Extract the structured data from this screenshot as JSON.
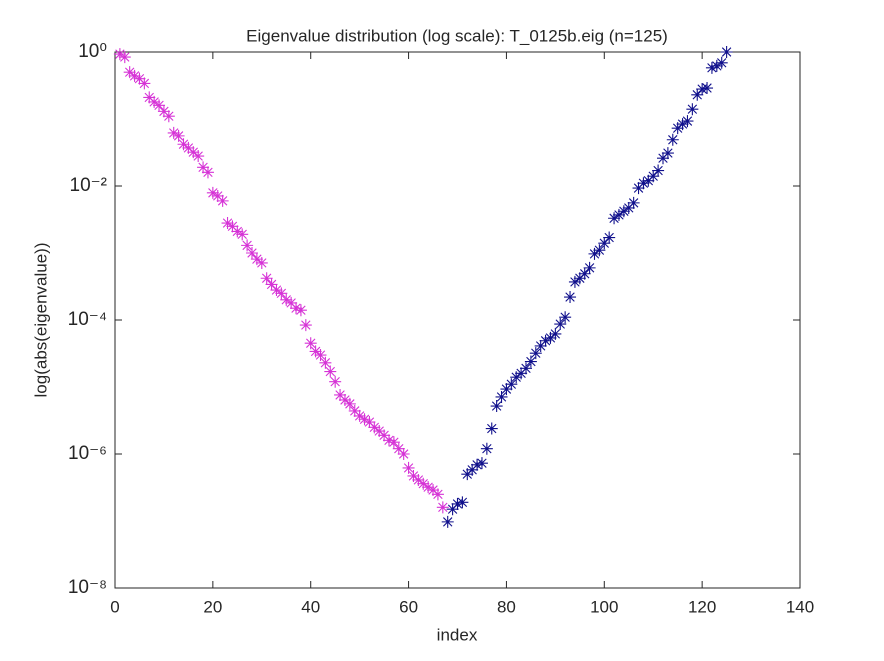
{
  "chart_data": {
    "type": "scatter",
    "title": "Eigenvalue distribution (log scale): T_0125b.eig (n=125)",
    "xlabel": "index",
    "ylabel": "log(abs(eigenvalue))",
    "ylog": true,
    "marker": "asterisk",
    "xlim": [
      0,
      140
    ],
    "xticks": [
      0,
      20,
      40,
      60,
      80,
      100,
      120,
      140
    ],
    "ylim": [
      1e-08,
      1
    ],
    "yticks": [
      {
        "value": 1e-08,
        "label": "10⁻⁸"
      },
      {
        "value": 1e-06,
        "label": "10⁻⁶"
      },
      {
        "value": 0.0001,
        "label": "10⁻⁴"
      },
      {
        "value": 0.01,
        "label": "10⁻²"
      },
      {
        "value": 1,
        "label": "10⁰"
      }
    ],
    "series": [
      {
        "color": "#d633d6",
        "x": [
          1,
          2,
          3,
          4,
          5,
          6,
          7,
          8,
          9,
          10,
          11,
          12,
          13,
          14,
          15,
          16,
          17,
          18,
          19,
          20,
          21,
          22,
          23,
          24,
          25,
          26,
          27,
          28,
          29,
          30,
          31,
          32,
          33,
          34,
          35,
          36,
          37,
          38,
          39,
          40,
          41,
          42,
          43,
          44,
          45,
          46,
          47,
          48,
          49,
          50,
          51,
          52,
          53,
          54,
          55,
          56,
          57,
          58,
          59,
          60,
          61,
          62,
          63,
          64,
          65,
          66,
          67
        ],
        "values": [
          0.93,
          0.84,
          0.5,
          0.44,
          0.4,
          0.34,
          0.21,
          0.18,
          0.16,
          0.13,
          0.11,
          0.062,
          0.056,
          0.042,
          0.037,
          0.032,
          0.028,
          0.019,
          0.016,
          0.0079,
          0.0071,
          0.006,
          0.0028,
          0.0025,
          0.0021,
          0.0019,
          0.0013,
          0.001,
          0.00081,
          0.00071,
          0.00042,
          0.00034,
          0.00028,
          0.00025,
          0.0002,
          0.00018,
          0.00015,
          0.00014,
          8.4e-05,
          4.5e-05,
          3.4e-05,
          3e-05,
          2.3e-05,
          1.7e-05,
          1.2e-05,
          7.6e-06,
          6.4e-06,
          5.6e-06,
          4.4e-06,
          3.7e-06,
          3.3e-06,
          3e-06,
          2.5e-06,
          2.2e-06,
          1.9e-06,
          1.6e-06,
          1.5e-06,
          1.2e-06,
          1e-06,
          6.2e-07,
          4.7e-07,
          4.1e-07,
          3.6e-07,
          3.2e-07,
          2.9e-07,
          2.5e-07,
          1.6e-07
        ]
      },
      {
        "color": "#10108c",
        "x": [
          68,
          69,
          70,
          71,
          72,
          73,
          74,
          75,
          76,
          77,
          78,
          79,
          80,
          81,
          82,
          83,
          84,
          85,
          86,
          87,
          88,
          89,
          90,
          91,
          92,
          93,
          94,
          95,
          96,
          97,
          98,
          99,
          100,
          101,
          102,
          103,
          104,
          105,
          106,
          107,
          108,
          109,
          110,
          111,
          112,
          113,
          114,
          115,
          116,
          117,
          118,
          119,
          120,
          121,
          122,
          123,
          124,
          125
        ],
        "values": [
          9.7e-08,
          1.5e-07,
          1.8e-07,
          1.9e-07,
          5e-07,
          5.8e-07,
          6.9e-07,
          7.3e-07,
          1.2e-06,
          2.4e-06,
          5.2e-06,
          7.1e-06,
          9.3e-06,
          1.1e-05,
          1.4e-05,
          1.6e-05,
          1.9e-05,
          2.4e-05,
          3.2e-05,
          4.1e-05,
          4.9e-05,
          5.4e-05,
          6.2e-05,
          8.7e-05,
          0.00011,
          0.00022,
          0.00037,
          0.00042,
          0.00049,
          0.0006,
          0.00097,
          0.0011,
          0.0014,
          0.0017,
          0.0033,
          0.0037,
          0.0042,
          0.0047,
          0.0056,
          0.0093,
          0.011,
          0.012,
          0.014,
          0.017,
          0.026,
          0.031,
          0.049,
          0.073,
          0.084,
          0.093,
          0.14,
          0.23,
          0.28,
          0.29,
          0.58,
          0.62,
          0.69,
          1.0
        ]
      }
    ]
  }
}
